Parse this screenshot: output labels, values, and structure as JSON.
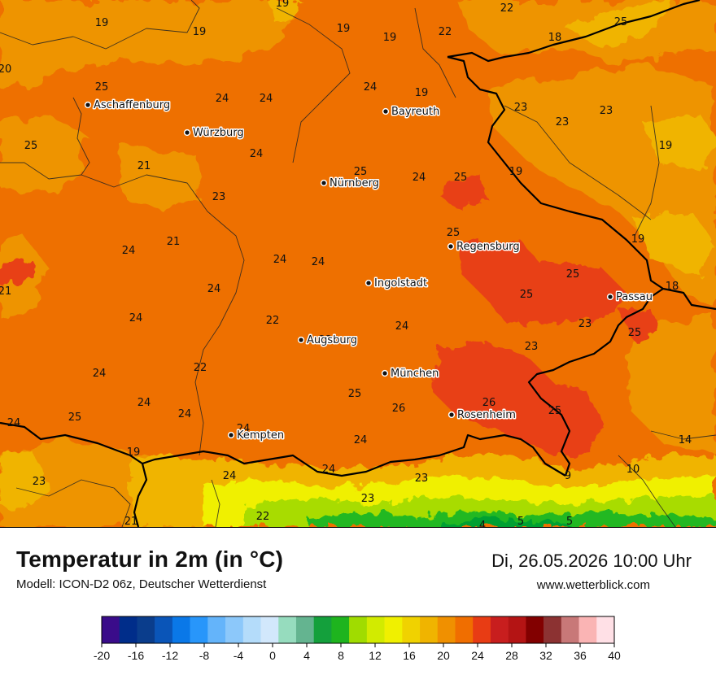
{
  "header": {
    "title": "Temperatur in 2m (in °C)",
    "model": "Modell: ICON-D2 06z, Deutscher Wetterdienst",
    "datetime": "Di, 26.05.2026 10:00 Uhr",
    "site": "www.wetterblick.com"
  },
  "map": {
    "cities": [
      {
        "name": "Aschaffenburg"
      },
      {
        "name": "Würzburg"
      },
      {
        "name": "Bayreuth"
      },
      {
        "name": "Nürnberg"
      },
      {
        "name": "Regensburg"
      },
      {
        "name": "Ingolstadt"
      },
      {
        "name": "Passau"
      },
      {
        "name": "Augsburg"
      },
      {
        "name": "München"
      },
      {
        "name": "Rosenheim"
      },
      {
        "name": "Kempten"
      }
    ],
    "temperature_labels": [
      "19",
      "19",
      "19",
      "19",
      "19",
      "22",
      "22",
      "18",
      "25",
      "20",
      "25",
      "24",
      "24",
      "24",
      "19",
      "24",
      "23",
      "23",
      "23",
      "25",
      "19",
      "21",
      "25",
      "24",
      "25",
      "23",
      "19",
      "25",
      "24",
      "21",
      "24",
      "24",
      "19",
      "21",
      "24",
      "25",
      "18",
      "25",
      "24",
      "22",
      "23",
      "22",
      "24",
      "25",
      "22",
      "23",
      "24",
      "25",
      "24",
      "24",
      "26",
      "26",
      "25",
      "24",
      "25",
      "24",
      "14",
      "23",
      "24",
      "24",
      "10",
      "19",
      "24",
      "9",
      "23",
      "21",
      "23",
      "22",
      "4",
      "5",
      "5"
    ],
    "colors": {
      "border": "#000000",
      "temp_16": "#f0f000",
      "temp_18": "#f2d200",
      "temp_20": "#f0b400",
      "temp_22": "#ee9400",
      "temp_24": "#ee7000",
      "temp_26": "#e84018",
      "temp_12": "#a8dc00",
      "temp_8": "#20b820",
      "temp_4": "#00a030"
    }
  },
  "legend": {
    "ticks": [
      "-20",
      "-16",
      "-12",
      "-8",
      "-4",
      "0",
      "4",
      "8",
      "12",
      "16",
      "20",
      "24",
      "28",
      "32",
      "36",
      "40"
    ],
    "colors": [
      "#3a0c8a",
      "#002d8a",
      "#0a3d8c",
      "#0a55b8",
      "#0a78e8",
      "#2896fa",
      "#64b4fa",
      "#8cc8fa",
      "#b4dcfa",
      "#d2e8fc",
      "#96dcbe",
      "#64b490",
      "#14a03c",
      "#1eb41e",
      "#a0dc00",
      "#d2eb00",
      "#f0f000",
      "#f0d200",
      "#f0b400",
      "#f09000",
      "#f06e00",
      "#e83c14",
      "#c81e1e",
      "#b41414",
      "#820000",
      "#8c3232",
      "#c87878",
      "#fab4b4",
      "#ffe0e6"
    ]
  }
}
